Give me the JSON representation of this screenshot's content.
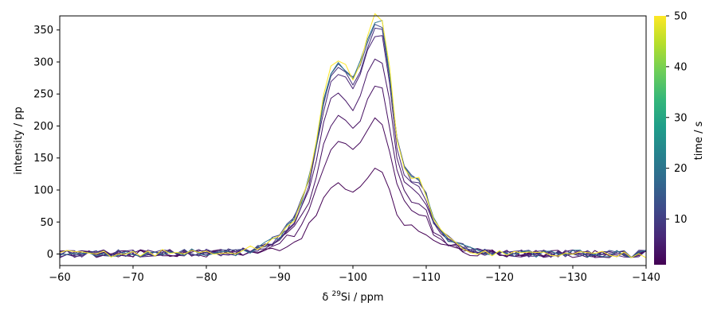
{
  "chart_data": {
    "type": "line",
    "xlabel_prefix": "δ ",
    "xlabel_sup": "29",
    "xlabel_suffix": "Si / ppm",
    "ylabel": "intensity / pp",
    "xlim": [
      -60,
      -140
    ],
    "ylim": [
      -18,
      372
    ],
    "xticks": [
      -60,
      -70,
      -80,
      -90,
      -100,
      -110,
      -120,
      -130,
      -140
    ],
    "xtick_labels": [
      "−60",
      "−70",
      "−80",
      "−90",
      "−100",
      "−110",
      "−120",
      "−130",
      "−140"
    ],
    "yticks": [
      0,
      50,
      100,
      150,
      200,
      250,
      300,
      350
    ],
    "ytick_labels": [
      "0",
      "50",
      "100",
      "150",
      "200",
      "250",
      "300",
      "350"
    ],
    "grid": false,
    "colorbar": {
      "label": "time / s",
      "min": 1,
      "max": 50,
      "ticks": [
        10,
        20,
        30,
        40,
        50
      ],
      "tick_labels": [
        "10",
        "20",
        "30",
        "40",
        "50"
      ],
      "colormap": "viridis"
    },
    "shape": {
      "x": [
        -60,
        -84,
        -86,
        -88,
        -90,
        -92,
        -93,
        -94,
        -95,
        -96,
        -97,
        -98,
        -99,
        -100,
        -101,
        -102,
        -103,
        -104,
        -105,
        -106,
        -107,
        -108,
        -109,
        -110,
        -111,
        -112,
        -114,
        -116,
        -120,
        -140
      ],
      "y": [
        0,
        3,
        7,
        14,
        28,
        55,
        82,
        118,
        172,
        240,
        283,
        296,
        288,
        272,
        294,
        333,
        363,
        358,
        282,
        180,
        135,
        120,
        112,
        92,
        52,
        33,
        15,
        6,
        1,
        0
      ]
    },
    "series": [
      {
        "time": 1,
        "scale": 0.36
      },
      {
        "time": 2,
        "scale": 0.58
      },
      {
        "time": 3,
        "scale": 0.72
      },
      {
        "time": 4,
        "scale": 0.84
      },
      {
        "time": 6,
        "scale": 0.94
      },
      {
        "time": 8,
        "scale": 0.98
      },
      {
        "time": 12,
        "scale": 1.0
      },
      {
        "time": 20,
        "scale": 1.01
      },
      {
        "time": 50,
        "scale": 1.02
      }
    ],
    "viridis": [
      "#440154",
      "#482878",
      "#3e4989",
      "#31688e",
      "#26828e",
      "#1f9e89",
      "#35b779",
      "#6ece58",
      "#b5de2b",
      "#fde725"
    ]
  }
}
